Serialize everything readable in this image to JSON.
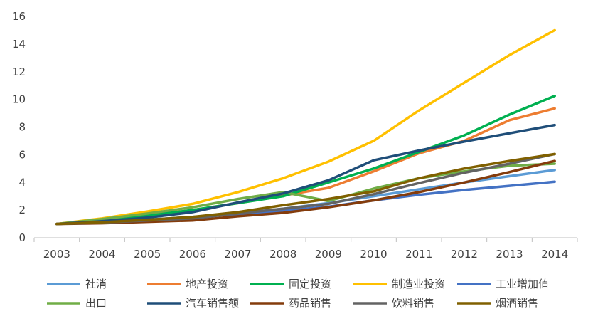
{
  "chart_data": {
    "type": "line",
    "title": "",
    "xlabel": "",
    "ylabel": "",
    "x": [
      "2003",
      "2004",
      "2005",
      "2006",
      "2007",
      "2008",
      "2009",
      "2010",
      "2011",
      "2012",
      "2013",
      "2014"
    ],
    "ylim": [
      0,
      16
    ],
    "yticks": [
      "0",
      "2",
      "4",
      "6",
      "8",
      "10",
      "12",
      "14",
      "16"
    ],
    "grid": false,
    "legend_position": "bottom",
    "series": [
      {
        "name": "社消",
        "color": "#5b9bd5",
        "values": [
          1.0,
          1.15,
          1.3,
          1.5,
          1.75,
          2.1,
          2.5,
          3.0,
          3.5,
          4.0,
          4.45,
          4.9
        ]
      },
      {
        "name": "地产投资",
        "color": "#ed7d31",
        "values": [
          1.0,
          1.3,
          1.6,
          2.0,
          2.5,
          3.05,
          3.6,
          4.8,
          6.1,
          7.0,
          8.5,
          9.35
        ]
      },
      {
        "name": "固定投资",
        "color": "#00b050",
        "values": [
          1.0,
          1.3,
          1.6,
          2.0,
          2.5,
          3.0,
          4.0,
          5.0,
          6.2,
          7.4,
          8.9,
          10.25
        ]
      },
      {
        "name": "制造业投资",
        "color": "#ffc000",
        "values": [
          1.0,
          1.4,
          1.9,
          2.45,
          3.3,
          4.3,
          5.5,
          7.0,
          9.2,
          11.2,
          13.2,
          15.0
        ]
      },
      {
        "name": "工业增加值",
        "color": "#4472c4",
        "values": [
          1.0,
          1.15,
          1.3,
          1.5,
          1.7,
          1.95,
          2.25,
          2.7,
          3.1,
          3.45,
          3.75,
          4.05
        ]
      },
      {
        "name": "出口",
        "color": "#70ad47",
        "values": [
          1.0,
          1.35,
          1.75,
          2.2,
          2.8,
          3.3,
          2.65,
          3.55,
          4.3,
          4.8,
          5.2,
          5.35
        ]
      },
      {
        "name": "汽车销售额",
        "color": "#1f4e79",
        "values": [
          1.0,
          1.2,
          1.45,
          1.85,
          2.55,
          3.2,
          4.15,
          5.6,
          6.3,
          6.95,
          7.55,
          8.15
        ]
      },
      {
        "name": "药品销售",
        "color": "#843c0c",
        "values": [
          1.0,
          1.05,
          1.15,
          1.25,
          1.55,
          1.8,
          2.2,
          2.7,
          3.3,
          4.0,
          4.75,
          5.55
        ]
      },
      {
        "name": "饮料销售",
        "color": "#636363",
        "values": [
          1.0,
          1.1,
          1.25,
          1.4,
          1.75,
          2.1,
          2.45,
          3.15,
          3.95,
          4.7,
          5.35,
          6.05
        ]
      },
      {
        "name": "烟酒销售",
        "color": "#806000",
        "values": [
          1.0,
          1.12,
          1.3,
          1.5,
          1.85,
          2.35,
          2.8,
          3.35,
          4.3,
          5.0,
          5.55,
          6.05
        ]
      }
    ]
  }
}
